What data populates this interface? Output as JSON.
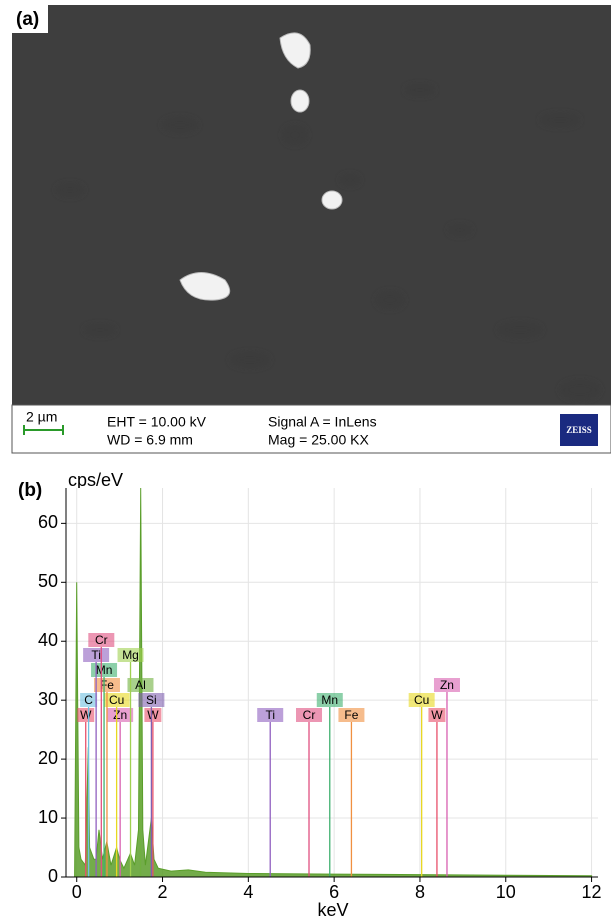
{
  "panel_a": {
    "label": "(a)",
    "scale_bar": "2 µm",
    "eht": "EHT = 10.00 kV",
    "wd": "WD = 6.9 mm",
    "signal": "Signal A = InLens",
    "mag": "Mag = 25.00 KX",
    "logo": "ZEISS"
  },
  "chart_data": {
    "type": "area",
    "panel_label": "(b)",
    "y_label": "cps/eV",
    "x_label": "keV",
    "xlim": [
      -0.25,
      12.15
    ],
    "ylim": [
      0,
      66
    ],
    "xticks": [
      0,
      2,
      4,
      6,
      8,
      10,
      12
    ],
    "yticks": [
      0,
      10,
      20,
      30,
      40,
      50,
      60
    ],
    "grid": true,
    "series": [
      {
        "color": "#5a9e2a",
        "x": [
          -0.05,
          0.0,
          0.05,
          0.1,
          0.2,
          0.27,
          0.3,
          0.4,
          0.45,
          0.52,
          0.6,
          0.7,
          0.8,
          0.93,
          1.0,
          1.1,
          1.25,
          1.35,
          1.44,
          1.49,
          1.54,
          1.6,
          1.74,
          1.8,
          1.9,
          2.2,
          2.6,
          3,
          4,
          6,
          8,
          10,
          12
        ],
        "values": [
          0,
          50,
          5,
          3,
          2,
          22,
          5,
          3,
          3,
          8,
          3,
          6,
          2,
          5,
          3,
          1.5,
          4,
          2,
          8,
          66,
          8,
          2,
          10,
          3,
          1.5,
          1,
          1.2,
          0.8,
          0.6,
          0.5,
          0.4,
          0.3,
          0.2
        ]
      }
    ],
    "markers": [
      {
        "label": "W",
        "x": 0.21,
        "color": "#e8506a"
      },
      {
        "label": "Zn",
        "x": 1.012,
        "color": "#d860b0"
      },
      {
        "label": "W",
        "x": 1.775,
        "color": "#e8506a"
      },
      {
        "label": "C",
        "x": 0.277,
        "color": "#70c0e0"
      },
      {
        "label": "Cu",
        "x": 0.93,
        "color": "#e8d820"
      },
      {
        "label": "Al",
        "x": 1.486,
        "color": "#70b040"
      },
      {
        "label": "Fe",
        "x": 0.705,
        "color": "#f09040"
      },
      {
        "label": "Si",
        "x": 1.74,
        "color": "#8060b0"
      },
      {
        "label": "Mn",
        "x": 0.637,
        "color": "#40b070"
      },
      {
        "label": "Mg",
        "x": 1.254,
        "color": "#a0d050"
      },
      {
        "label": "Ti",
        "x": 0.452,
        "color": "#9060c0"
      },
      {
        "label": "Cr",
        "x": 0.573,
        "color": "#e05080"
      },
      {
        "label": "Ti",
        "x": 4.51,
        "color": "#9060c0"
      },
      {
        "label": "Cr",
        "x": 5.414,
        "color": "#e05080"
      },
      {
        "label": "Fe",
        "x": 6.403,
        "color": "#f09040"
      },
      {
        "label": "W",
        "x": 8.396,
        "color": "#e8506a"
      },
      {
        "label": "Mn",
        "x": 5.898,
        "color": "#40b070"
      },
      {
        "label": "Cu",
        "x": 8.04,
        "color": "#e8d820"
      },
      {
        "label": "Zn",
        "x": 8.63,
        "color": "#d860b0"
      }
    ]
  }
}
